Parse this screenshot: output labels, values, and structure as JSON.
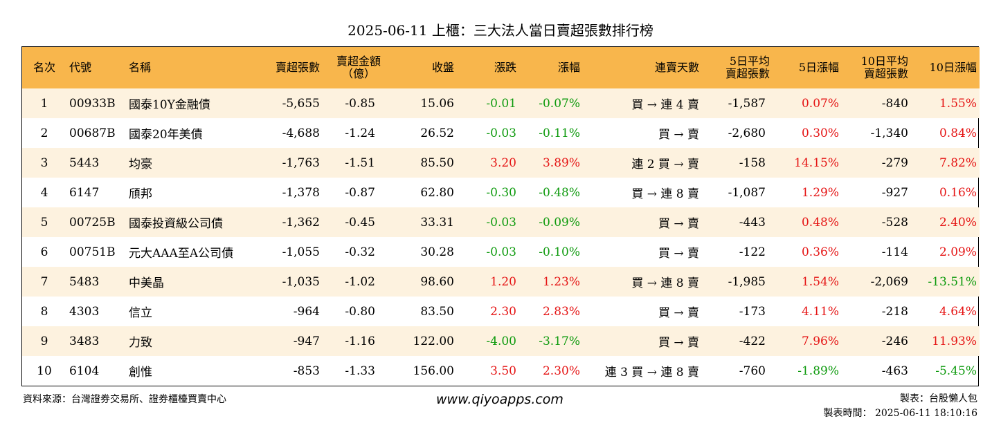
{
  "title": "2025-06-11 上櫃：三大法人當日賣超張數排行榜",
  "headers": [
    "名次",
    "代號",
    "名稱",
    "賣超張數",
    "賣超金額\n（億）",
    "收盤",
    "漲跌",
    "漲幅",
    "連賣天數",
    "5日平均\n賣超張數",
    "5日漲幅",
    "10日平均\n賣超張數",
    "10日漲幅"
  ],
  "rows": [
    {
      "rank": "1",
      "code": "00933B",
      "name": "國泰10Y金融債",
      "sell_qty": "-5,655",
      "sell_amt": "-0.85",
      "close": "15.06",
      "chg": "-0.01",
      "pct": "-0.07%",
      "days": "買 → 連 4 賣",
      "avg5": "-1,587",
      "pct5": "0.07%",
      "avg10": "-840",
      "pct10": "1.55%"
    },
    {
      "rank": "2",
      "code": "00687B",
      "name": "國泰20年美債",
      "sell_qty": "-4,688",
      "sell_amt": "-1.24",
      "close": "26.52",
      "chg": "-0.03",
      "pct": "-0.11%",
      "days": "買 → 賣",
      "avg5": "-2,680",
      "pct5": "0.30%",
      "avg10": "-1,340",
      "pct10": "0.84%"
    },
    {
      "rank": "3",
      "code": "5443",
      "name": "均豪",
      "sell_qty": "-1,763",
      "sell_amt": "-1.51",
      "close": "85.50",
      "chg": "3.20",
      "pct": "3.89%",
      "days": "連 2 買 → 賣",
      "avg5": "-158",
      "pct5": "14.15%",
      "avg10": "-279",
      "pct10": "7.82%"
    },
    {
      "rank": "4",
      "code": "6147",
      "name": "頎邦",
      "sell_qty": "-1,378",
      "sell_amt": "-0.87",
      "close": "62.80",
      "chg": "-0.30",
      "pct": "-0.48%",
      "days": "買 → 連 8 賣",
      "avg5": "-1,087",
      "pct5": "1.29%",
      "avg10": "-927",
      "pct10": "0.16%"
    },
    {
      "rank": "5",
      "code": "00725B",
      "name": "國泰投資級公司債",
      "sell_qty": "-1,362",
      "sell_amt": "-0.45",
      "close": "33.31",
      "chg": "-0.03",
      "pct": "-0.09%",
      "days": "買 → 賣",
      "avg5": "-443",
      "pct5": "0.48%",
      "avg10": "-528",
      "pct10": "2.40%"
    },
    {
      "rank": "6",
      "code": "00751B",
      "name": "元大AAA至A公司債",
      "sell_qty": "-1,055",
      "sell_amt": "-0.32",
      "close": "30.28",
      "chg": "-0.03",
      "pct": "-0.10%",
      "days": "買 → 賣",
      "avg5": "-122",
      "pct5": "0.36%",
      "avg10": "-114",
      "pct10": "2.09%"
    },
    {
      "rank": "7",
      "code": "5483",
      "name": "中美晶",
      "sell_qty": "-1,035",
      "sell_amt": "-1.02",
      "close": "98.60",
      "chg": "1.20",
      "pct": "1.23%",
      "days": "買 → 連 8 賣",
      "avg5": "-1,985",
      "pct5": "1.54%",
      "avg10": "-2,069",
      "pct10": "-13.51%"
    },
    {
      "rank": "8",
      "code": "4303",
      "name": "信立",
      "sell_qty": "-964",
      "sell_amt": "-0.80",
      "close": "83.50",
      "chg": "2.30",
      "pct": "2.83%",
      "days": "買 → 賣",
      "avg5": "-173",
      "pct5": "4.11%",
      "avg10": "-218",
      "pct10": "4.64%"
    },
    {
      "rank": "9",
      "code": "3483",
      "name": "力致",
      "sell_qty": "-947",
      "sell_amt": "-1.16",
      "close": "122.00",
      "chg": "-4.00",
      "pct": "-3.17%",
      "days": "買 → 賣",
      "avg5": "-422",
      "pct5": "7.96%",
      "avg10": "-246",
      "pct10": "11.93%"
    },
    {
      "rank": "10",
      "code": "6104",
      "name": "創惟",
      "sell_qty": "-853",
      "sell_amt": "-1.33",
      "close": "156.00",
      "chg": "3.50",
      "pct": "2.30%",
      "days": "連 3 買 → 連 8 賣",
      "avg5": "-760",
      "pct5": "-1.89%",
      "avg10": "-463",
      "pct10": "-5.45%"
    }
  ],
  "footer": {
    "source": "資料來源：台灣證券交易所、證券櫃檯買賣中心",
    "website": "www.qiyoapps.com",
    "maker": "製表：台股懶人包",
    "time": "製表時間： 2025-06-11 18:10:16"
  },
  "colors": {
    "header_bg": "#f8b64c",
    "odd_row_bg": "#fdf2df",
    "up": "#e51414",
    "down": "#0d9a0d"
  }
}
